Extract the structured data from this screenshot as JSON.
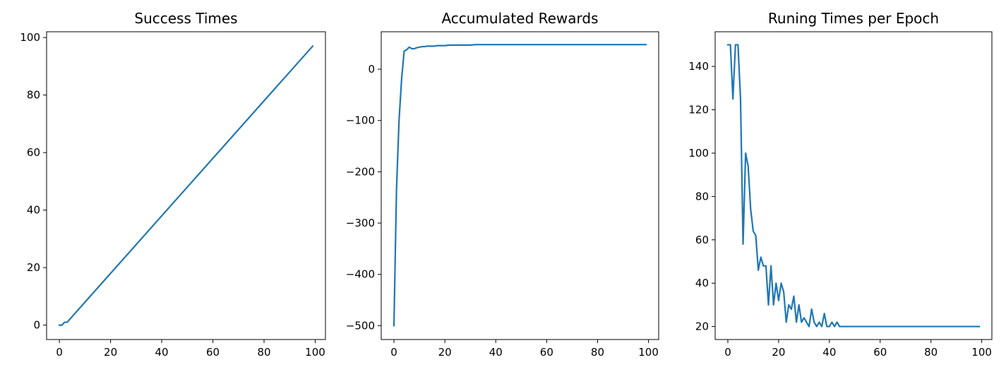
{
  "chart_data": [
    {
      "type": "line",
      "title": "Success Times",
      "xlabel": "",
      "ylabel": "",
      "xlim": [
        -5,
        104
      ],
      "ylim": [
        -5,
        102
      ],
      "xticks": [
        0,
        20,
        40,
        60,
        80,
        100
      ],
      "yticks": [
        0,
        20,
        40,
        60,
        80,
        100
      ],
      "line_color": "#1f77b4",
      "series": [
        {
          "x": [
            0,
            1,
            2,
            3,
            99
          ],
          "values": [
            0,
            0,
            1,
            1,
            97
          ]
        }
      ]
    },
    {
      "type": "line",
      "title": "Accumulated Rewards",
      "xlabel": "",
      "ylabel": "",
      "xlim": [
        -5,
        104
      ],
      "ylim": [
        -527,
        73
      ],
      "xticks": [
        0,
        20,
        40,
        60,
        80,
        100
      ],
      "yticks": [
        0,
        -100,
        -200,
        -300,
        -400,
        -500
      ],
      "ytick_labels": [
        "0",
        "−100",
        "−200",
        "−300",
        "−400",
        "−500"
      ],
      "line_color": "#1f77b4",
      "series": [
        {
          "x": [
            0,
            1,
            2,
            3,
            4,
            5,
            6,
            7,
            8,
            9,
            10,
            11,
            12,
            13,
            14,
            15,
            16,
            17,
            18,
            19,
            20,
            22,
            24,
            26,
            28,
            30,
            32,
            34,
            36,
            38,
            40,
            44,
            50,
            60,
            70,
            80,
            90,
            99
          ],
          "values": [
            -500,
            -235,
            -100,
            -20,
            35,
            38,
            43,
            40,
            40,
            42,
            43,
            44,
            44,
            45,
            45,
            45,
            45,
            46,
            46,
            46,
            46,
            47,
            47,
            47,
            47,
            47,
            48,
            48,
            48,
            48,
            48,
            48,
            48,
            48,
            48,
            48,
            48,
            48
          ]
        }
      ]
    },
    {
      "type": "line",
      "title": "Runing Times per Epoch",
      "xlabel": "",
      "ylabel": "",
      "xlim": [
        -5,
        104
      ],
      "ylim": [
        14,
        156
      ],
      "xticks": [
        0,
        20,
        40,
        60,
        80,
        100
      ],
      "yticks": [
        20,
        40,
        60,
        80,
        100,
        120,
        140
      ],
      "line_color": "#1f77b4",
      "series": [
        {
          "x": [
            0,
            1,
            2,
            3,
            4,
            5,
            6,
            7,
            8,
            9,
            10,
            11,
            12,
            13,
            14,
            15,
            16,
            17,
            18,
            19,
            20,
            21,
            22,
            23,
            24,
            25,
            26,
            27,
            28,
            29,
            30,
            31,
            32,
            33,
            34,
            35,
            36,
            37,
            38,
            39,
            40,
            41,
            42,
            43,
            44,
            45,
            50,
            60,
            70,
            80,
            90,
            99
          ],
          "values": [
            150,
            150,
            125,
            150,
            150,
            125,
            58,
            100,
            94,
            74,
            64,
            62,
            46,
            52,
            48,
            48,
            30,
            48,
            30,
            40,
            32,
            40,
            36,
            22,
            30,
            28,
            34,
            22,
            30,
            22,
            24,
            22,
            20,
            28,
            22,
            20,
            22,
            20,
            26,
            20,
            20,
            22,
            20,
            22,
            20,
            20,
            20,
            20,
            20,
            20,
            20,
            20
          ]
        }
      ]
    }
  ]
}
